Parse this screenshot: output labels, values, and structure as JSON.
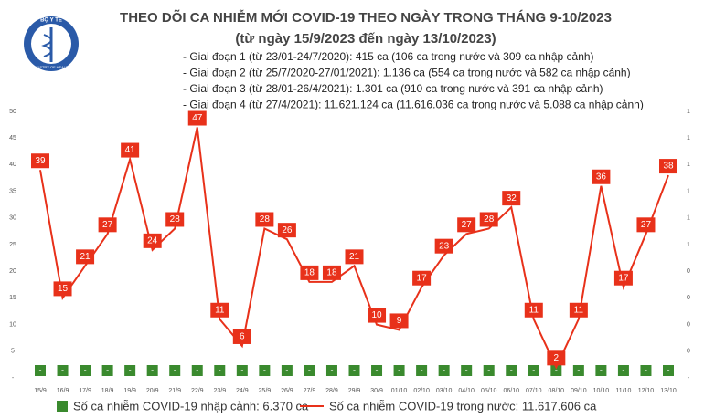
{
  "chart_data": {
    "type": "line",
    "title": "THEO DÕI CA NHIỄM MỚI COVID-19 THEO NGÀY TRONG THÁNG 9-10/2023",
    "subtitle": "(từ ngày 15/9/2023 đến ngày 13/10/2023)",
    "logo_text": "BỘ Y TẾ",
    "logo_subtext": "MINISTRY OF HEALTH",
    "notes": [
      "- Giai đoạn 1 (từ 23/01-24/7/2020): 415 ca (106 ca trong nước và 309 ca nhập cảnh)",
      "- Giai đoạn 2 (từ 25/7/2020-27/01/2021): 1.136 ca (554 ca trong nước và 582 ca nhập cảnh)",
      "- Giai đoạn 3 (từ 28/01-26/4/2021): 1.301 ca (910 ca trong nước và 391 ca nhập cảnh)",
      "- Giai đoạn 4 (từ 27/4/2021): 11.621.124 ca (11.616.036 ca trong nước và 5.088 ca nhập cảnh)"
    ],
    "categories": [
      "15/9",
      "16/9",
      "17/9",
      "18/9",
      "19/9",
      "20/9",
      "21/9",
      "22/9",
      "23/9",
      "24/9",
      "25/9",
      "26/9",
      "27/9",
      "28/9",
      "29/9",
      "30/9",
      "01/10",
      "02/10",
      "03/10",
      "04/10",
      "05/10",
      "06/10",
      "07/10",
      "08/10",
      "09/10",
      "10/10",
      "11/10",
      "12/10",
      "13/10"
    ],
    "series": [
      {
        "name": "Số ca nhiễm COVID-19 nhập cảnh: 6.370 ca",
        "color": "#3a8a2e",
        "axis": "y2",
        "values": [
          0,
          0,
          0,
          0,
          0,
          0,
          0,
          0,
          0,
          0,
          0,
          0,
          0,
          0,
          0,
          0,
          0,
          0,
          0,
          0,
          0,
          0,
          0,
          0,
          0,
          0,
          0,
          0,
          0
        ],
        "value_labels": [
          "-",
          "-",
          "-",
          "-",
          "-",
          "-",
          "-",
          "-",
          "-",
          "-",
          "-",
          "-",
          "-",
          "-",
          "-",
          "-",
          "-",
          "-",
          "-",
          "-",
          "-",
          "-",
          "-",
          "-",
          "-",
          "-",
          "-",
          "-",
          "-"
        ]
      },
      {
        "name": "Số ca nhiễm COVID-19 trong nước: 11.617.606 ca",
        "color": "#e8311a",
        "values": [
          39,
          15,
          21,
          27,
          41,
          24,
          28,
          47,
          11,
          6,
          28,
          26,
          18,
          18,
          21,
          10,
          9,
          17,
          23,
          27,
          28,
          32,
          11,
          2,
          11,
          36,
          17,
          27,
          38
        ]
      }
    ],
    "ylim": [
      0,
      50
    ],
    "yticks": [
      {
        "value": 0,
        "label": "-"
      },
      5,
      10,
      15,
      20,
      25,
      30,
      35,
      40,
      45,
      50
    ],
    "y2lim": [
      0,
      1
    ],
    "y2ticks": [
      {
        "value": 0,
        "label": "-"
      },
      {
        "value": 0.1,
        "label": "0"
      },
      {
        "value": 0.2,
        "label": "0"
      },
      {
        "value": 0.3,
        "label": "0"
      },
      {
        "value": 0.4,
        "label": "0"
      },
      {
        "value": 0.5,
        "label": "1"
      },
      {
        "value": 0.6,
        "label": "1"
      },
      {
        "value": 0.7,
        "label": "1"
      },
      {
        "value": 0.8,
        "label": "1"
      },
      {
        "value": 0.9,
        "label": "1"
      },
      1
    ],
    "legend": "bottom"
  }
}
